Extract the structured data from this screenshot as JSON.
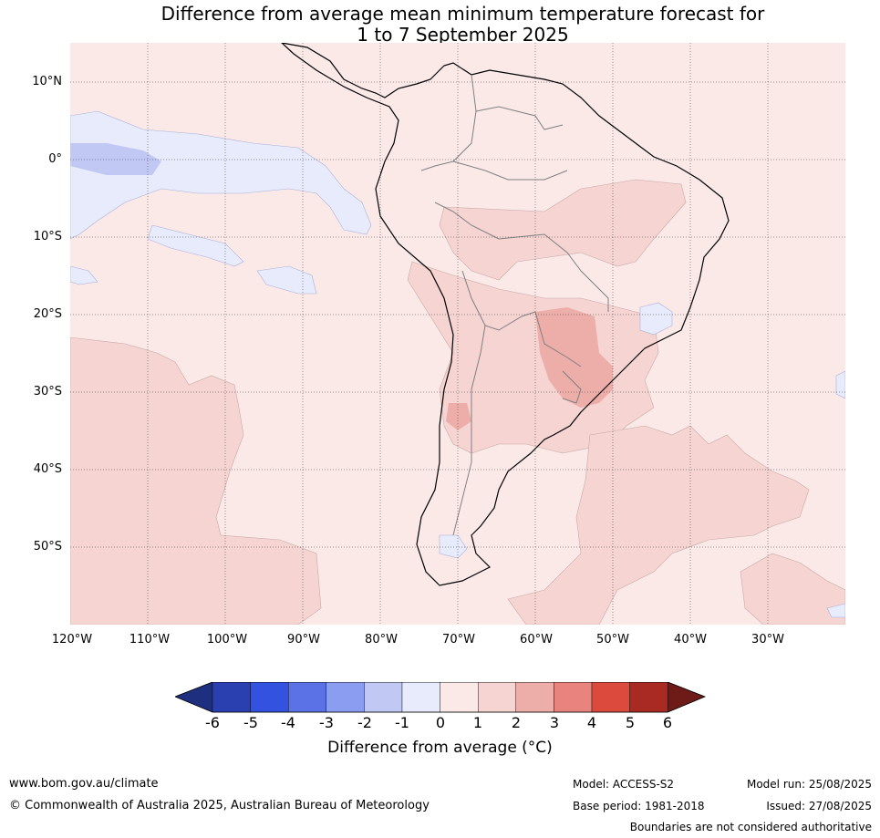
{
  "title": {
    "line1": "Difference from average mean minimum temperature forecast for",
    "line2": "1 to 7 September 2025"
  },
  "map": {
    "lat_labels": [
      "10°N",
      "0°",
      "10°S",
      "20°S",
      "30°S",
      "40°S",
      "50°S"
    ],
    "lon_labels": [
      "120°W",
      "110°W",
      "100°W",
      "90°W",
      "80°W",
      "70°W",
      "60°W",
      "50°W",
      "40°W",
      "30°W"
    ],
    "extent": {
      "lon_min": -120,
      "lon_max": -20,
      "lat_min": -60,
      "lat_max": 15
    },
    "background_anomaly_color": "#fbe9e8"
  },
  "colorbar": {
    "ticks": [
      "-6",
      "-5",
      "-4",
      "-3",
      "-2",
      "-1",
      "0",
      "1",
      "2",
      "3",
      "4",
      "5",
      "6"
    ],
    "colors": [
      "#1f2f80",
      "#2a3fb0",
      "#3352e0",
      "#5a72e6",
      "#8a9df0",
      "#c1c8f3",
      "#e8ebfb",
      "#fbe9e8",
      "#f5d4d2",
      "#edaeaa",
      "#e8847d",
      "#dc4a3d",
      "#a92a22",
      "#6e1a17"
    ],
    "label": "Difference from average (°C)"
  },
  "footer": {
    "website": "www.bom.gov.au/climate",
    "copyright": "© Commonwealth of Australia 2025, Australian Bureau of Meteorology",
    "model": "Model: ACCESS-S2",
    "base_period": "Base period: 1981-2018",
    "model_run": "Model run: 25/08/2025",
    "issued": "Issued: 27/08/2025",
    "disclaimer": "Boundaries are not considered authoritative"
  }
}
